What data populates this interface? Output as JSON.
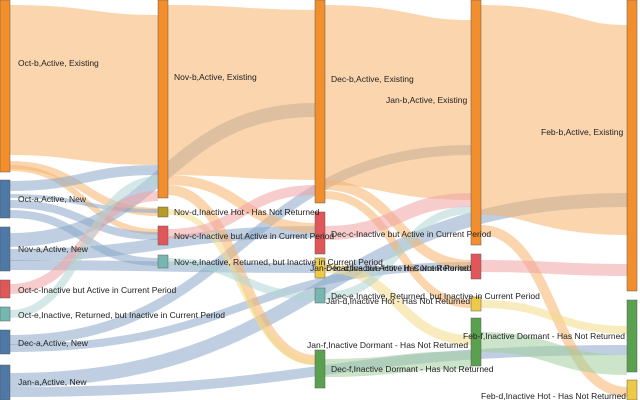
{
  "colors": {
    "orange": "#f28e2b",
    "orange_link": "#f7b26b",
    "blue": "#4e79a7",
    "blue_link": "#8aa8c8",
    "red": "#e15759",
    "red_link": "#f0a2a2",
    "teal": "#76b7b2",
    "teal_link": "#b0d6d3",
    "olive": "#b69b2a",
    "yellow": "#edc948",
    "yellow_link": "#f3dc8a",
    "green": "#59a14f",
    "green_link": "#a3cd9c"
  },
  "nodes": [
    {
      "id": "oct_b",
      "label": "Oct-b,Active, Existing",
      "color": "orange"
    },
    {
      "id": "oct_a",
      "label": "Oct-a,Active, New",
      "color": "blue"
    },
    {
      "id": "nov_a",
      "label": "Nov-a,Active, New",
      "color": "blue"
    },
    {
      "id": "oct_c",
      "label": "Oct-c-Inactive but Active in Current Period",
      "color": "red"
    },
    {
      "id": "oct_e",
      "label": "Oct-e,Inactive, Returned, but Inactive in Current Period",
      "color": "teal"
    },
    {
      "id": "dec_a",
      "label": "Dec-a,Active, New",
      "color": "blue"
    },
    {
      "id": "jan_a",
      "label": "Jan-a,Active, New",
      "color": "blue"
    },
    {
      "id": "nov_b",
      "label": "Nov-b,Active, Existing",
      "color": "orange"
    },
    {
      "id": "nov_d",
      "label": "Nov-d,Inactive Hot - Has Not Returned",
      "color": "olive"
    },
    {
      "id": "nov_c",
      "label": "Nov-c-Inactive but Active in Current Period",
      "color": "red"
    },
    {
      "id": "nov_e",
      "label": "Nov-e,Inactive, Returned, but Inactive in Current Period",
      "color": "teal"
    },
    {
      "id": "dec_b",
      "label": "Dec-b,Active, Existing",
      "color": "orange"
    },
    {
      "id": "dec_c",
      "label": "Dec-c-Inactive but Active in Current Period",
      "color": "red"
    },
    {
      "id": "dec_d",
      "label": "Dec-d,Inactive Hot - Has Not Returned",
      "color": "yellow"
    },
    {
      "id": "dec_e",
      "label": "Dec-e,Inactive, Returned, but Inactive in Current Period",
      "color": "teal"
    },
    {
      "id": "dec_f",
      "label": "Dec-f,Inactive Dormant - Has Not Returned",
      "color": "green"
    },
    {
      "id": "jan_b",
      "label": "Jan-b,Active, Existing",
      "color": "orange"
    },
    {
      "id": "jan_c",
      "label": "Jan-c-Inactive but Active in Current Period",
      "color": "red"
    },
    {
      "id": "jan_d",
      "label": "Jan-d,Inactive Hot - Has Not Returned",
      "color": "yellow"
    },
    {
      "id": "jan_f",
      "label": "Jan-f,Inactive Dormant - Has Not Returned",
      "color": "green"
    },
    {
      "id": "feb_b",
      "label": "Feb-b,Active, Existing",
      "color": "orange"
    },
    {
      "id": "feb_f",
      "label": "Feb-f,Inactive Dormant - Has Not Returned",
      "color": "green"
    },
    {
      "id": "feb_d",
      "label": "Feb-d,Inactive Hot - Has Not Returned",
      "color": "yellow"
    }
  ],
  "links": [
    {
      "source": "oct_b",
      "target": "nov_b",
      "color": "orange_link"
    },
    {
      "source": "oct_b",
      "target": "nov_d",
      "color": "orange_link"
    },
    {
      "source": "oct_b",
      "target": "nov_c",
      "color": "orange_link"
    },
    {
      "source": "oct_a",
      "target": "nov_b",
      "color": "blue_link"
    },
    {
      "source": "oct_a",
      "target": "nov_d",
      "color": "blue_link"
    },
    {
      "source": "oct_a",
      "target": "nov_c",
      "color": "blue_link"
    },
    {
      "source": "oct_a",
      "target": "nov_e",
      "color": "blue_link"
    },
    {
      "source": "nov_a",
      "target": "dec_b",
      "color": "blue_link"
    },
    {
      "source": "nov_a",
      "target": "dec_c",
      "color": "blue_link"
    },
    {
      "source": "nov_a",
      "target": "dec_d",
      "color": "blue_link"
    },
    {
      "source": "oct_c",
      "target": "nov_b",
      "color": "red_link"
    },
    {
      "source": "oct_e",
      "target": "nov_b",
      "color": "teal_link"
    },
    {
      "source": "dec_a",
      "target": "jan_b",
      "color": "blue_link"
    },
    {
      "source": "dec_a",
      "target": "jan_c",
      "color": "blue_link"
    },
    {
      "source": "jan_a",
      "target": "feb_b",
      "color": "blue_link"
    },
    {
      "source": "jan_a",
      "target": "feb_f",
      "color": "blue_link"
    },
    {
      "source": "nov_b",
      "target": "dec_b",
      "color": "orange_link"
    },
    {
      "source": "nov_b",
      "target": "dec_c",
      "color": "orange_link"
    },
    {
      "source": "nov_b",
      "target": "dec_f",
      "color": "orange_link"
    },
    {
      "source": "nov_d",
      "target": "dec_f",
      "color": "yellow_link"
    },
    {
      "source": "nov_c",
      "target": "dec_b",
      "color": "red_link"
    },
    {
      "source": "nov_e",
      "target": "dec_e",
      "color": "teal_link"
    },
    {
      "source": "dec_b",
      "target": "jan_b",
      "color": "orange_link"
    },
    {
      "source": "dec_b",
      "target": "jan_c",
      "color": "orange_link"
    },
    {
      "source": "dec_b",
      "target": "jan_d",
      "color": "orange_link"
    },
    {
      "source": "dec_c",
      "target": "jan_b",
      "color": "red_link"
    },
    {
      "source": "dec_d",
      "target": "jan_f",
      "color": "yellow_link"
    },
    {
      "source": "dec_e",
      "target": "jan_b",
      "color": "teal_link"
    },
    {
      "source": "dec_f",
      "target": "jan_f",
      "color": "green_link"
    },
    {
      "source": "jan_b",
      "target": "feb_b",
      "color": "orange_link"
    },
    {
      "source": "jan_b",
      "target": "feb_d",
      "color": "orange_link"
    },
    {
      "source": "jan_c",
      "target": "feb_b",
      "color": "red_link"
    },
    {
      "source": "jan_d",
      "target": "feb_f",
      "color": "yellow_link"
    },
    {
      "source": "jan_f",
      "target": "feb_f",
      "color": "green_link"
    }
  ]
}
